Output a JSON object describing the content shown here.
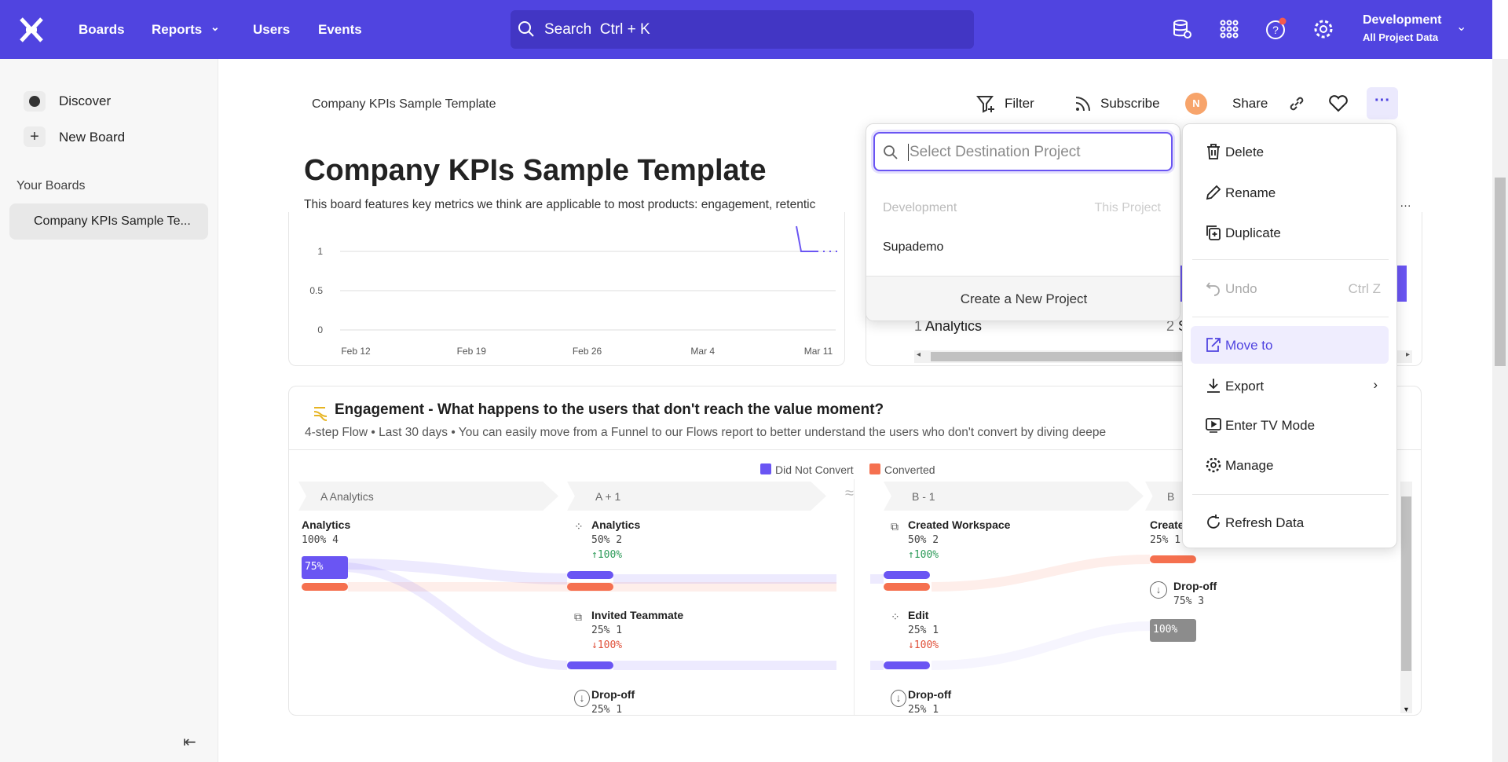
{
  "header": {
    "nav": [
      {
        "label": "Boards"
      },
      {
        "label": "Reports"
      },
      {
        "label": "Users"
      },
      {
        "label": "Events"
      }
    ],
    "search": "Search  Ctrl + K",
    "project": "Development",
    "project_sub": "All Project Data",
    "brand_color": "#5044e0"
  },
  "sidebar": {
    "discover": "Discover",
    "new_board": "New Board",
    "section": "Your Boards",
    "boards": [
      "Company KPIs Sample Te..."
    ]
  },
  "board": {
    "breadcrumb": "Company KPIs Sample Template",
    "title": "Company KPIs Sample Template",
    "description": "This board features key metrics we think are applicable to most products: engagement, retentic",
    "filter": "Filter",
    "subscribe": "Subscribe",
    "avatar": "N",
    "share": "Share"
  },
  "chart_data": {
    "type": "line",
    "y_ticks": [
      "0",
      "0.5",
      "1"
    ],
    "x_ticks": [
      "Feb 12",
      "Feb 19",
      "Feb 26",
      "Mar 4",
      "Mar 11"
    ],
    "ylim": [
      0,
      1.4
    ],
    "series_color": "#6a55f3"
  },
  "card2": {
    "row1_index": "1",
    "row1_label": "Analytics",
    "row2_index": "2",
    "row2_label": "S"
  },
  "flow": {
    "title": "Engagement - What happens to the users that don't reach the value moment?",
    "subtitle": "4-step Flow • Last 30 days • You can easily move from a Funnel to our Flows report to better understand the users who don't convert by diving deepe",
    "legend": [
      {
        "label": "Did Not Convert",
        "color": "#6a55f3"
      },
      {
        "label": "Converted",
        "color": "#f5704f"
      }
    ],
    "steps": [
      "A  Analytics",
      "A + 1",
      "B - 1",
      "B"
    ],
    "col1": {
      "name": "Analytics",
      "value": "100% 4",
      "bar": "75%"
    },
    "col2": [
      {
        "name": "Analytics",
        "value": "50% 2",
        "delta": "↑100%"
      },
      {
        "name": "Invited Teammate",
        "value": "25% 1",
        "delta": "↓100%"
      },
      {
        "name": "Drop-off",
        "value": "25% 1"
      }
    ],
    "col3": [
      {
        "name": "Created Workspace",
        "value": "50% 2",
        "delta": "↑100%"
      },
      {
        "name": "Edit",
        "value": "25% 1",
        "delta": "↓100%"
      },
      {
        "name": "Drop-off",
        "value": "25% 1"
      }
    ],
    "col4": [
      {
        "name": "Create",
        "value": "25% 1"
      },
      {
        "name": "Drop-off",
        "value": "75% 3",
        "bar": "100%"
      }
    ]
  },
  "move_menu": {
    "placeholder": "Select Destination Project",
    "group": "Development",
    "group_tag": "This Project",
    "projects": [
      "Supademo"
    ],
    "create": "Create a New Project"
  },
  "more_menu": {
    "items": [
      "Delete",
      "Rename",
      "Duplicate",
      "Undo",
      "Move to",
      "Export",
      "Enter TV Mode",
      "Manage",
      "Refresh Data"
    ],
    "undo_shortcut": "Ctrl Z"
  }
}
